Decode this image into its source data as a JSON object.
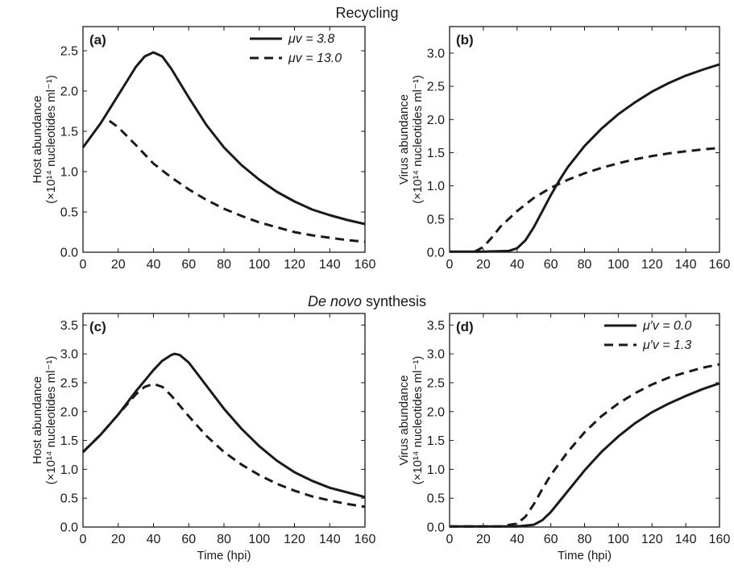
{
  "sections": {
    "top": "Recycling",
    "bottom_italic": "De novo",
    "bottom_rest": " synthesis"
  },
  "colors": {
    "line": "#1a1a1a",
    "axis": "#1a1a1a"
  },
  "chart_data": [
    {
      "panel": "(a)",
      "type": "line",
      "xlabel": "",
      "ylabel_line1": "Host abundance",
      "ylabel_line2": "(×10¹⁴ nucleotides ml⁻¹)",
      "xlim": [
        0,
        160
      ],
      "ylim": [
        0,
        2.8
      ],
      "xticks": [
        0,
        20,
        40,
        60,
        80,
        100,
        120,
        140,
        160
      ],
      "yticks": [
        0.0,
        0.5,
        1.0,
        1.5,
        2.0,
        2.5
      ],
      "legend": "top-right",
      "series": [
        {
          "name": "μv = 3.8",
          "style": "solid",
          "x": [
            0,
            10,
            20,
            30,
            35,
            40,
            45,
            50,
            60,
            70,
            80,
            90,
            100,
            110,
            120,
            130,
            140,
            150,
            160
          ],
          "y": [
            1.3,
            1.6,
            1.95,
            2.3,
            2.43,
            2.48,
            2.43,
            2.28,
            1.92,
            1.58,
            1.3,
            1.08,
            0.9,
            0.75,
            0.63,
            0.53,
            0.46,
            0.4,
            0.35
          ]
        },
        {
          "name": "μv = 13.0",
          "style": "dashed",
          "x": [
            15,
            20,
            30,
            40,
            50,
            60,
            70,
            80,
            90,
            100,
            110,
            120,
            130,
            140,
            150,
            160
          ],
          "y": [
            1.63,
            1.55,
            1.33,
            1.1,
            0.93,
            0.78,
            0.65,
            0.54,
            0.45,
            0.37,
            0.31,
            0.25,
            0.21,
            0.18,
            0.15,
            0.13
          ]
        }
      ]
    },
    {
      "panel": "(b)",
      "type": "line",
      "xlabel": "",
      "ylabel_line1": "Virus abundance",
      "ylabel_line2": "(×10¹⁴ nucleotides ml⁻¹)",
      "xlim": [
        0,
        160
      ],
      "ylim": [
        0,
        3.4
      ],
      "xticks": [
        0,
        20,
        40,
        60,
        80,
        100,
        120,
        140,
        160
      ],
      "yticks": [
        0.0,
        0.5,
        1.0,
        1.5,
        2.0,
        2.5,
        3.0
      ],
      "legend": "",
      "series": [
        {
          "name": "",
          "style": "solid",
          "x": [
            0,
            20,
            35,
            40,
            45,
            50,
            55,
            60,
            65,
            70,
            80,
            90,
            100,
            110,
            120,
            130,
            140,
            150,
            160
          ],
          "y": [
            0.01,
            0.01,
            0.02,
            0.06,
            0.18,
            0.38,
            0.62,
            0.86,
            1.08,
            1.28,
            1.6,
            1.86,
            2.08,
            2.26,
            2.42,
            2.55,
            2.66,
            2.75,
            2.83
          ]
        },
        {
          "name": "",
          "style": "dashed",
          "x": [
            15,
            20,
            25,
            30,
            40,
            50,
            60,
            70,
            80,
            90,
            100,
            110,
            120,
            130,
            140,
            150,
            160
          ],
          "y": [
            0.01,
            0.08,
            0.22,
            0.38,
            0.62,
            0.82,
            0.97,
            1.09,
            1.19,
            1.27,
            1.34,
            1.4,
            1.45,
            1.49,
            1.52,
            1.55,
            1.57
          ]
        }
      ]
    },
    {
      "panel": "(c)",
      "type": "line",
      "xlabel": "Time (hpi)",
      "ylabel_line1": "Host abundance",
      "ylabel_line2": "(×10¹⁴ nucleotides ml⁻¹)",
      "xlim": [
        0,
        160
      ],
      "ylim": [
        0,
        3.7
      ],
      "xticks": [
        0,
        20,
        40,
        60,
        80,
        100,
        120,
        140,
        160
      ],
      "yticks": [
        0.0,
        0.5,
        1.0,
        1.5,
        2.0,
        2.5,
        3.0,
        3.5
      ],
      "legend": "",
      "series": [
        {
          "name": "",
          "style": "solid",
          "x": [
            0,
            10,
            20,
            30,
            40,
            45,
            50,
            52,
            55,
            60,
            70,
            80,
            90,
            100,
            110,
            120,
            130,
            140,
            150,
            160
          ],
          "y": [
            1.3,
            1.6,
            1.95,
            2.35,
            2.72,
            2.88,
            2.98,
            3.0,
            2.98,
            2.85,
            2.45,
            2.05,
            1.7,
            1.4,
            1.15,
            0.95,
            0.8,
            0.68,
            0.6,
            0.52
          ]
        },
        {
          "name": "",
          "style": "dashed",
          "x": [
            0,
            10,
            20,
            30,
            35,
            40,
            45,
            50,
            60,
            70,
            80,
            90,
            100,
            110,
            120,
            130,
            140,
            150,
            160
          ],
          "y": [
            1.3,
            1.6,
            1.95,
            2.3,
            2.43,
            2.48,
            2.43,
            2.28,
            1.92,
            1.58,
            1.3,
            1.08,
            0.9,
            0.75,
            0.63,
            0.53,
            0.46,
            0.4,
            0.35
          ]
        }
      ]
    },
    {
      "panel": "(d)",
      "type": "line",
      "xlabel": "Time (hpi)",
      "ylabel_line1": "Virus abundance",
      "ylabel_line2": "(×10¹⁴ nucleotides ml⁻¹)",
      "xlim": [
        0,
        160
      ],
      "ylim": [
        0,
        3.7
      ],
      "xticks": [
        0,
        20,
        40,
        60,
        80,
        100,
        120,
        140,
        160
      ],
      "yticks": [
        0.0,
        0.5,
        1.0,
        1.5,
        2.0,
        2.5,
        3.0,
        3.5
      ],
      "legend": "top-right",
      "series": [
        {
          "name": "μ′v = 0.0",
          "style": "solid",
          "x": [
            0,
            40,
            50,
            55,
            60,
            65,
            70,
            80,
            90,
            100,
            110,
            120,
            130,
            140,
            150,
            160
          ],
          "y": [
            0.01,
            0.01,
            0.04,
            0.12,
            0.26,
            0.44,
            0.62,
            0.98,
            1.3,
            1.57,
            1.8,
            1.99,
            2.14,
            2.27,
            2.39,
            2.49
          ]
        },
        {
          "name": "μ′v = 1.3",
          "style": "dashed",
          "x": [
            0,
            30,
            40,
            45,
            50,
            55,
            60,
            70,
            80,
            90,
            100,
            110,
            120,
            130,
            140,
            150,
            160
          ],
          "y": [
            0.01,
            0.01,
            0.06,
            0.18,
            0.4,
            0.66,
            0.9,
            1.3,
            1.64,
            1.92,
            2.14,
            2.32,
            2.47,
            2.59,
            2.68,
            2.76,
            2.82
          ]
        }
      ]
    }
  ]
}
